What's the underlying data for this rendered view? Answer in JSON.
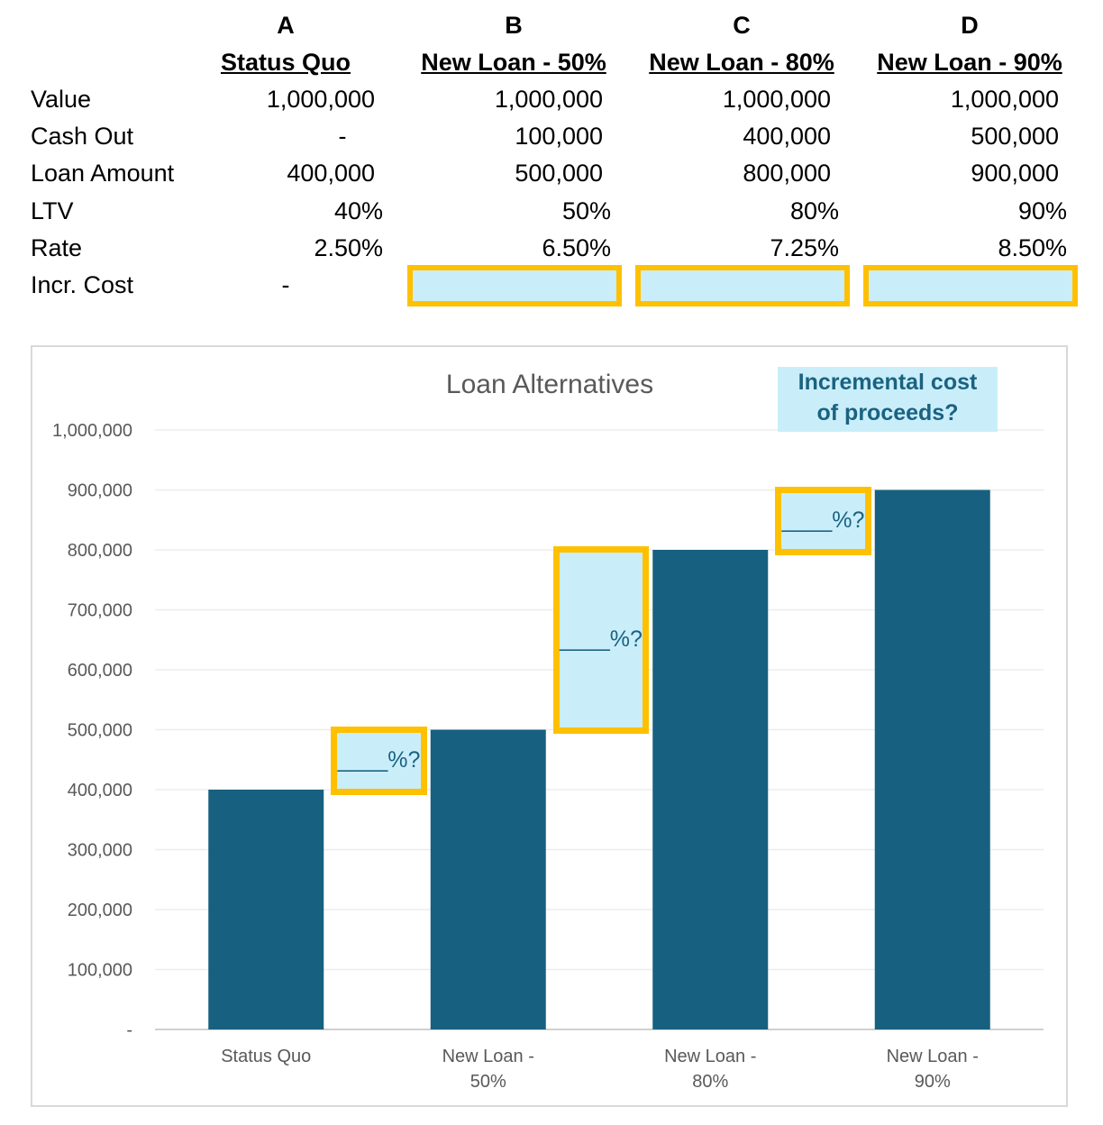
{
  "table": {
    "letters": [
      "A",
      "B",
      "C",
      "D"
    ],
    "scenarios": [
      "Status Quo",
      "New Loan - 50%",
      "New Loan - 80%",
      "New Loan - 90%"
    ],
    "rows": [
      {
        "label": "Value",
        "values": [
          "1,000,000",
          "1,000,000",
          "1,000,000",
          "1,000,000"
        ]
      },
      {
        "label": "Cash Out",
        "values": [
          "-",
          "100,000",
          "400,000",
          "500,000"
        ]
      },
      {
        "label": "Loan Amount",
        "values": [
          "400,000",
          "500,000",
          "800,000",
          "900,000"
        ]
      },
      {
        "label": "LTV",
        "values": [
          "40%",
          "50%",
          "80%",
          "90%"
        ]
      },
      {
        "label": "Rate",
        "values": [
          "2.50%",
          "6.50%",
          "7.25%",
          "8.50%"
        ]
      },
      {
        "label": "Incr. Cost",
        "values": [
          "-"
        ]
      }
    ]
  },
  "note": {
    "line1": "Incremental cost",
    "line2": "of proceeds?"
  },
  "question_label": "____%?",
  "colors": {
    "bar": "#17607F",
    "highlight_border": "#FFC000",
    "highlight_fill": "#C9EEFA",
    "note_text": "#1B6280"
  },
  "chart_data": {
    "type": "bar",
    "title": "Loan Alternatives",
    "categories": [
      [
        "Status Quo"
      ],
      [
        "New Loan -",
        "50%"
      ],
      [
        "New Loan -",
        "80%"
      ],
      [
        "New Loan -",
        "90%"
      ]
    ],
    "values": [
      400000,
      500000,
      800000,
      900000
    ],
    "ylim": [
      0,
      1000000
    ],
    "yticks": [
      0,
      100000,
      200000,
      300000,
      400000,
      500000,
      600000,
      700000,
      800000,
      900000,
      1000000
    ],
    "ytick_labels": [
      "-",
      "100,000",
      "200,000",
      "300,000",
      "400,000",
      "500,000",
      "600,000",
      "700,000",
      "800,000",
      "900,000",
      "1,000,000"
    ],
    "increments": [
      {
        "from": 400000,
        "to": 500000,
        "label": "____%?"
      },
      {
        "from": 500000,
        "to": 800000,
        "label": "____%?"
      },
      {
        "from": 800000,
        "to": 900000,
        "label": "____%?"
      }
    ],
    "grid": true,
    "legend": "none"
  }
}
